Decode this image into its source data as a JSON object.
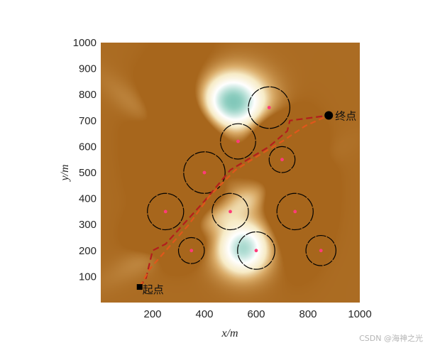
{
  "chart_data": {
    "type": "heatmap",
    "xlabel": "x/m",
    "ylabel": "y/m",
    "xlim": [
      0,
      1000
    ],
    "ylim": [
      0,
      1000
    ],
    "x_ticks": [
      "200",
      "400",
      "600",
      "800",
      "1000"
    ],
    "y_ticks": [
      "100",
      "200",
      "300",
      "400",
      "500",
      "600",
      "700",
      "800",
      "900",
      "1000"
    ],
    "colors": {
      "terrain_high": "#a7661c",
      "terrain_mid": "#f7ebc6",
      "terrain_low": "#0f8b7d",
      "path_planned": "#b31d1d",
      "path_smoothed": "#e0571b",
      "threat_center": "#ff3b7a",
      "threat_circle": "#000000"
    },
    "start": {
      "x": 150,
      "y": 60,
      "label": "起点"
    },
    "end": {
      "x": 880,
      "y": 720,
      "label": "终点"
    },
    "threats": [
      {
        "x": 650,
        "y": 750,
        "r": 80
      },
      {
        "x": 530,
        "y": 620,
        "r": 68
      },
      {
        "x": 400,
        "y": 500,
        "r": 80
      },
      {
        "x": 700,
        "y": 550,
        "r": 50
      },
      {
        "x": 250,
        "y": 350,
        "r": 70
      },
      {
        "x": 500,
        "y": 350,
        "r": 70
      },
      {
        "x": 750,
        "y": 350,
        "r": 70
      },
      {
        "x": 350,
        "y": 200,
        "r": 50
      },
      {
        "x": 600,
        "y": 200,
        "r": 72
      },
      {
        "x": 850,
        "y": 200,
        "r": 58
      }
    ],
    "series": [
      {
        "values": [
          [
            150,
            60
          ],
          [
            175,
            95
          ],
          [
            200,
            200
          ],
          [
            250,
            225
          ],
          [
            300,
            280
          ],
          [
            400,
            390
          ],
          [
            450,
            450
          ],
          [
            500,
            510
          ],
          [
            550,
            540
          ],
          [
            650,
            600
          ],
          [
            720,
            660
          ],
          [
            730,
            700
          ],
          [
            880,
            720
          ]
        ]
      },
      {
        "values": [
          [
            150,
            60
          ],
          [
            190,
            130
          ],
          [
            260,
            210
          ],
          [
            340,
            300
          ],
          [
            420,
            410
          ],
          [
            480,
            470
          ],
          [
            520,
            510
          ],
          [
            600,
            560
          ],
          [
            700,
            620
          ],
          [
            790,
            680
          ],
          [
            880,
            720
          ]
        ]
      }
    ],
    "terrain": [
      {
        "x": 500,
        "y": 770,
        "rx": 130,
        "ry": 110,
        "h": -1.9
      },
      {
        "x": 550,
        "y": 210,
        "rx": 100,
        "ry": 100,
        "h": -1.5
      },
      {
        "x": 340,
        "y": 620,
        "rx": 140,
        "ry": 230,
        "h": 0.55
      },
      {
        "x": 745,
        "y": 430,
        "rx": 95,
        "ry": 190,
        "h": 0.55
      },
      {
        "x": 280,
        "y": 260,
        "rx": 110,
        "ry": 80,
        "h": 0.4
      },
      {
        "x": 660,
        "y": 620,
        "rx": 80,
        "ry": 90,
        "h": 0.35
      }
    ]
  }
}
